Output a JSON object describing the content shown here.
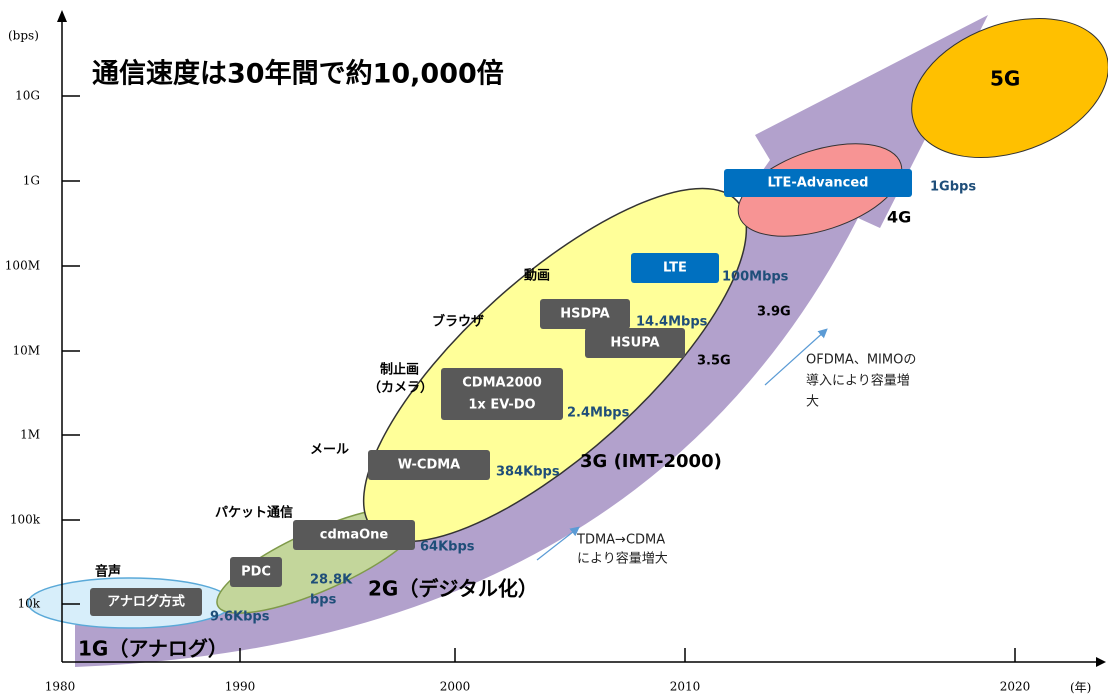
{
  "title": "通信速度は30年間で約10,000倍",
  "y_axis": {
    "unit": "(bps)",
    "ticks": [
      "10G",
      "1G",
      "100M",
      "10M",
      "1M",
      "100k",
      "10k"
    ]
  },
  "x_axis": {
    "unit": "(年)",
    "ticks": [
      "1980",
      "1990",
      "2000",
      "2010",
      "2020"
    ]
  },
  "generations": [
    "1G（アナログ）",
    "2G（デジタル化）",
    "3G (IMT-2000)",
    "3.5G",
    "3.9G",
    "4G",
    "5G"
  ],
  "systems": [
    "アナログ方式",
    "PDC",
    "cdmaOne",
    "W-CDMA",
    "CDMA2000",
    "1x EV-DO",
    "HSDPA",
    "HSUPA",
    "LTE",
    "LTE-Advanced"
  ],
  "speeds": [
    "9.6Kbps",
    "28.8K",
    "bps",
    "64Kbps",
    "384Kbps",
    "2.4Mbps",
    "14.4Mbps",
    "100Mbps",
    "1Gbps"
  ],
  "uses": [
    "音声",
    "パケット通信",
    "メール",
    "制止画",
    "（カメラ）",
    "ブラウザ",
    "動画"
  ],
  "notes": [
    [
      "TDMA→CDMA",
      "により容量増大"
    ],
    [
      "OFDMA、MIMOの",
      "導入により容量増",
      "大"
    ]
  ]
}
